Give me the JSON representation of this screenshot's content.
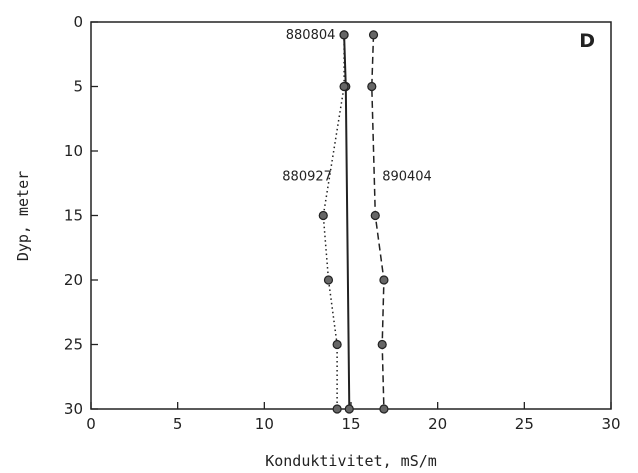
{
  "chart_data": {
    "type": "line",
    "panel_label": "D",
    "xlabel": "Konduktivitet, mS/m",
    "ylabel": "Dyp, meter",
    "xlim": [
      0,
      30
    ],
    "ylim": [
      30,
      0
    ],
    "y_inverted": true,
    "x_ticks": [
      0,
      5,
      10,
      15,
      20,
      25,
      30
    ],
    "y_ticks": [
      0,
      5,
      10,
      15,
      20,
      25,
      30
    ],
    "grid": false,
    "series": [
      {
        "name": "880804",
        "line_style": "solid",
        "color": "#222222",
        "points": [
          {
            "x": 14.6,
            "y": 1
          },
          {
            "x": 14.7,
            "y": 5
          },
          {
            "x": 14.9,
            "y": 30
          }
        ]
      },
      {
        "name": "880927",
        "line_style": "dotted",
        "color": "#222222",
        "points": [
          {
            "x": 14.6,
            "y": 1
          },
          {
            "x": 14.6,
            "y": 5
          },
          {
            "x": 13.4,
            "y": 15
          },
          {
            "x": 13.7,
            "y": 20
          },
          {
            "x": 14.2,
            "y": 25
          },
          {
            "x": 14.2,
            "y": 30
          }
        ]
      },
      {
        "name": "890404",
        "line_style": "dashed",
        "color": "#222222",
        "points": [
          {
            "x": 16.3,
            "y": 1
          },
          {
            "x": 16.2,
            "y": 5
          },
          {
            "x": 16.4,
            "y": 15
          },
          {
            "x": 16.9,
            "y": 20
          },
          {
            "x": 16.8,
            "y": 25
          },
          {
            "x": 16.9,
            "y": 30
          }
        ]
      }
    ]
  }
}
